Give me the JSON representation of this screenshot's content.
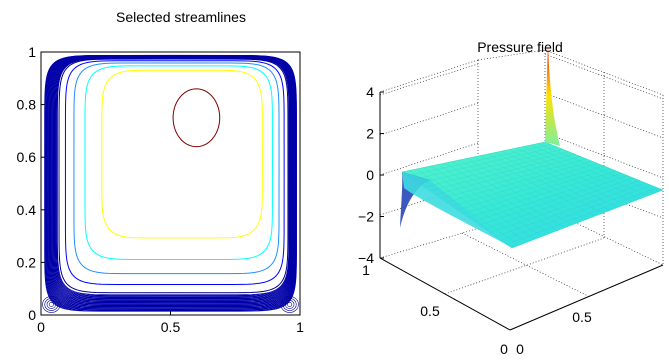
{
  "chart_data": [
    {
      "type": "contour",
      "title": "Selected streamlines",
      "xlim": [
        0,
        1
      ],
      "ylim": [
        0,
        1
      ],
      "xticks": [
        "0",
        "0.5",
        "1"
      ],
      "yticks": [
        "0",
        "0.2",
        "0.4",
        "0.6",
        "0.8",
        "1"
      ],
      "grid": false,
      "vortex_center": [
        0.6,
        0.75
      ],
      "secondary_eddies": [
        [
          0.04,
          0.04
        ],
        [
          0.96,
          0.04
        ]
      ],
      "levels": [
        {
          "color": "#800000",
          "extent": [
            0.45,
            0.72,
            0.62,
            0.87
          ]
        },
        {
          "color": "#ffff00",
          "extent": [
            0.3,
            0.86,
            0.5,
            0.94
          ]
        },
        {
          "color": "#00ffff",
          "extent": [
            0.19,
            0.94,
            0.42,
            0.97
          ]
        },
        {
          "color": "#1e90ff",
          "extent": [
            0.11,
            0.96,
            0.34,
            0.98
          ]
        },
        {
          "color": "#0000ff",
          "extent": [
            0.06,
            0.97,
            0.26,
            0.99
          ]
        },
        {
          "color": "#00008b",
          "extent": [
            0.03,
            0.985,
            0.15,
            0.995
          ]
        }
      ]
    },
    {
      "type": "surface",
      "title": "Pressure field",
      "x": [
        0,
        0.5
      ],
      "y": [
        0,
        0.5
      ],
      "zlim": [
        -4,
        4
      ],
      "zticks": [
        "−4",
        "−2",
        "0",
        "2",
        "4"
      ],
      "xticks": [
        "0",
        "0.5"
      ],
      "yticks": [
        "0",
        "0.5",
        "1"
      ],
      "grid": true,
      "peak": {
        "x": 1,
        "y": 1,
        "z": 4.5
      },
      "trough": {
        "x": 0,
        "y": 1,
        "z": -2.8
      }
    }
  ]
}
